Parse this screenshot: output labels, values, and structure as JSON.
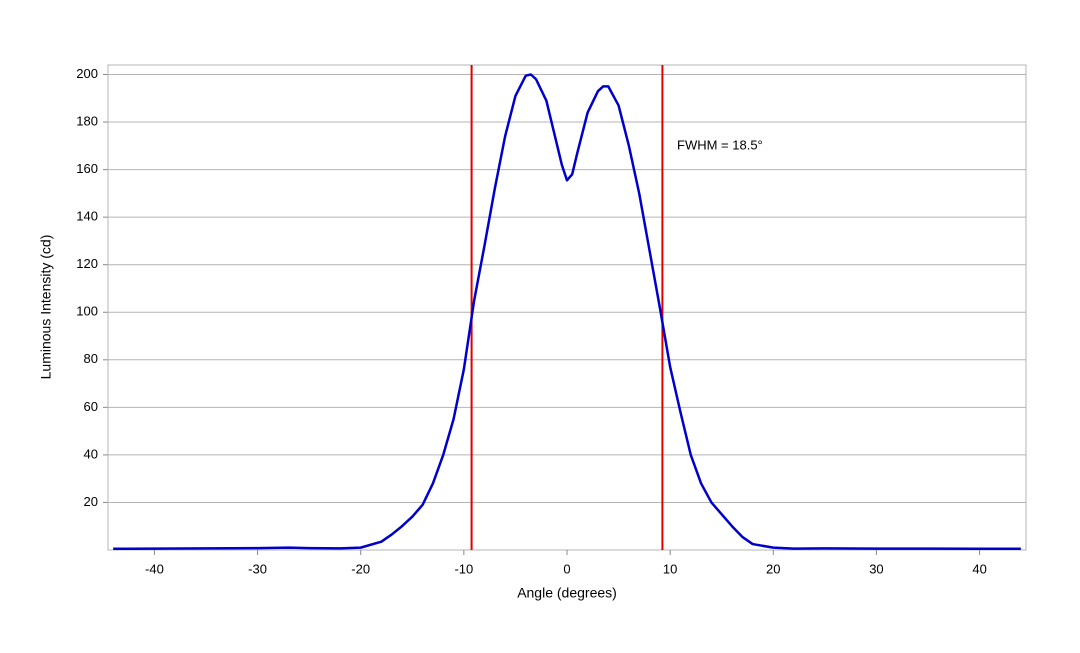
{
  "chart_data": {
    "type": "line",
    "x_label": "Angle (degrees)",
    "y_label": "Luminous Intensity (cd)",
    "annotation": "FWHM = 18.5°",
    "x": [
      -44,
      -40,
      -35,
      -30,
      -27,
      -25,
      -22,
      -20,
      -18,
      -17,
      -16,
      -15,
      -14,
      -13,
      -12,
      -11,
      -10,
      -9,
      -8,
      -7,
      -6,
      -5,
      -4,
      -3.5,
      -3,
      -2,
      -1,
      -0.5,
      0,
      0.5,
      1,
      2,
      3,
      3.5,
      4,
      5,
      6,
      7,
      8,
      9,
      10,
      11,
      12,
      13,
      14,
      15,
      16,
      17,
      18,
      20,
      22,
      25,
      30,
      35,
      40,
      44
    ],
    "values": [
      0.5,
      0.6,
      0.7,
      0.8,
      1,
      0.8,
      0.7,
      1,
      3.5,
      6.5,
      10,
      14,
      19,
      28,
      40,
      55,
      76,
      105,
      128,
      152,
      174,
      191,
      199.5,
      200,
      198,
      189,
      171,
      162,
      155.5,
      158,
      167,
      184,
      193,
      195,
      195,
      187,
      170,
      150,
      126,
      102,
      77,
      58,
      40,
      28,
      20,
      15,
      10,
      5.5,
      2.5,
      1,
      0.6,
      0.7,
      0.6,
      0.6,
      0.5,
      0.5
    ],
    "color": "#0000cc",
    "vlines": [
      -9.25,
      9.25
    ],
    "vline_color": "#e00000",
    "xlim": [
      -44.5,
      44.5
    ],
    "ylim": [
      0,
      204
    ],
    "xticks": [
      -40,
      -30,
      -20,
      -10,
      0,
      10,
      20,
      30,
      40
    ],
    "yticks": [
      20,
      40,
      60,
      80,
      100,
      120,
      140,
      160,
      180,
      200
    ],
    "grid": true
  }
}
